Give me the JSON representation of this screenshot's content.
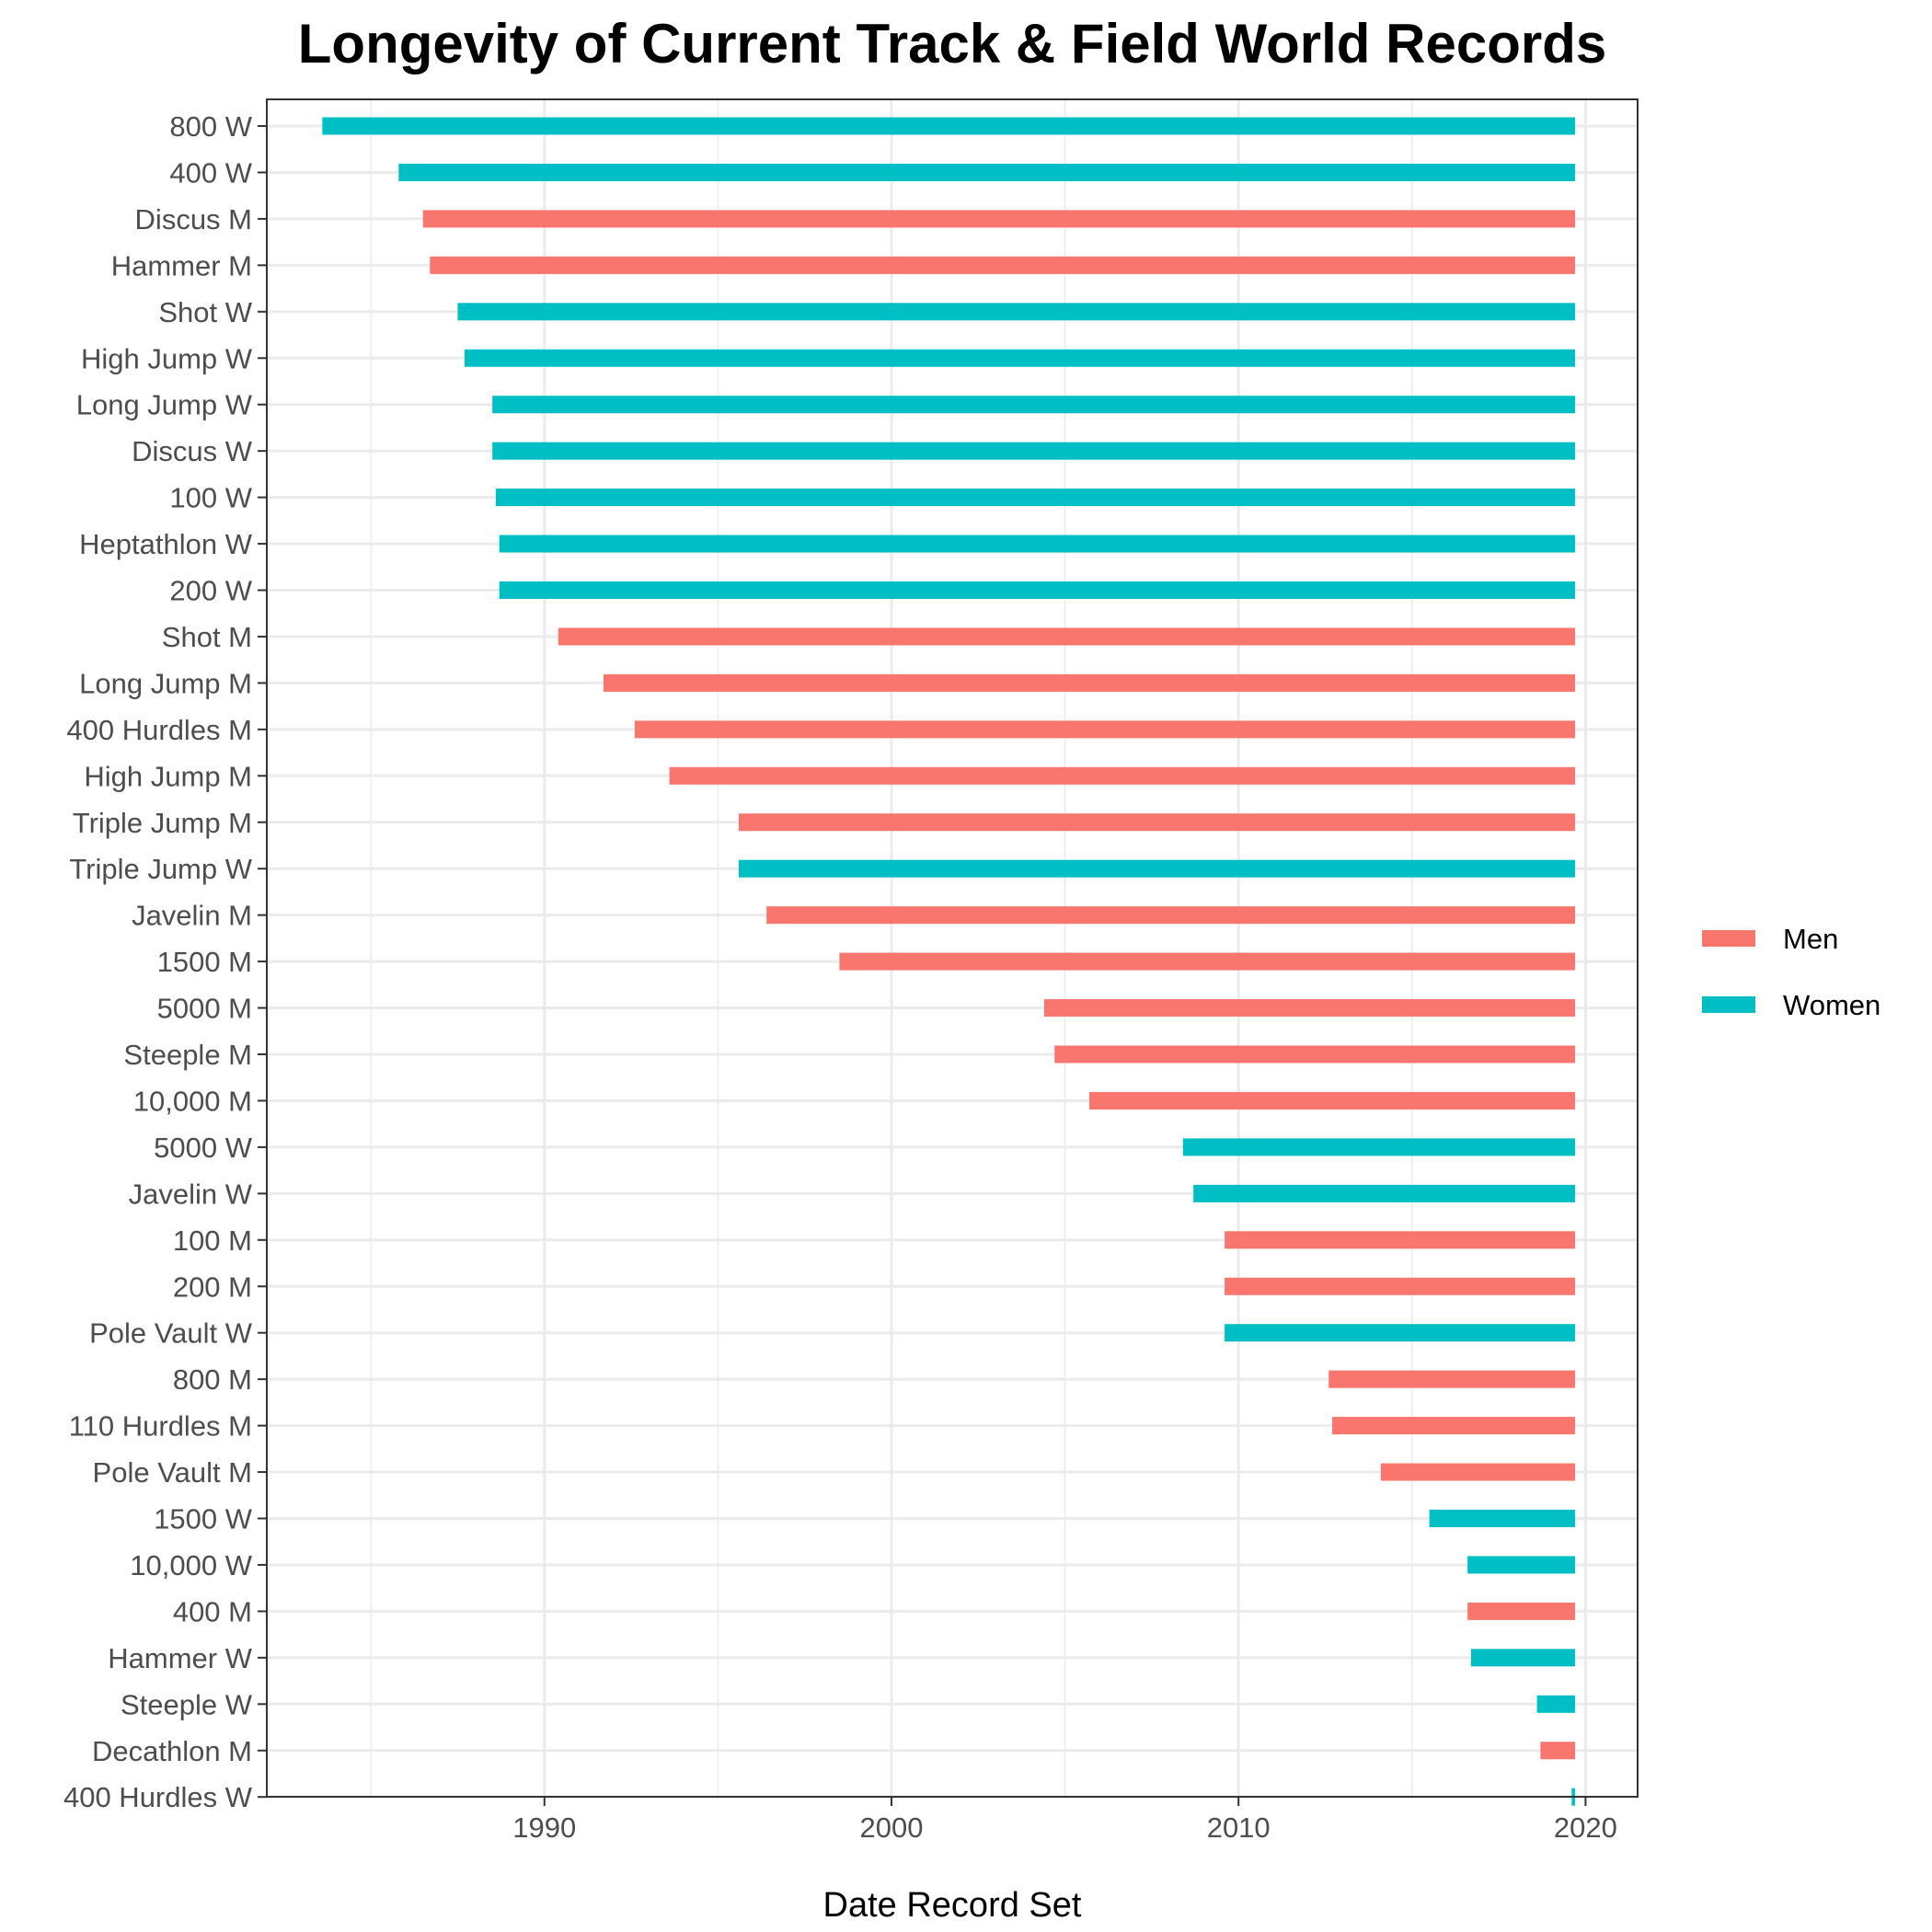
{
  "colors": {
    "men": "#F8766D",
    "women": "#00BFC4"
  },
  "chart_data": {
    "type": "bar",
    "orientation": "horizontal",
    "title": "Longevity of Current Track & Field World Records",
    "xlabel": "Date Record Set",
    "ylabel": "",
    "xlim": [
      1982,
      2021.5
    ],
    "end_value": 2019.7,
    "xticks": [
      1990,
      2000,
      2010,
      2020
    ],
    "grid": true,
    "legend": {
      "position": "right",
      "entries": [
        "Men",
        "Women"
      ]
    },
    "series": [
      {
        "name": "Men",
        "color": "#F8766D"
      },
      {
        "name": "Women",
        "color": "#00BFC4"
      }
    ],
    "records": [
      {
        "event": "800 W",
        "group": "Women",
        "start": 1983.6
      },
      {
        "event": "400 W",
        "group": "Women",
        "start": 1985.8
      },
      {
        "event": "Discus M",
        "group": "Men",
        "start": 1986.5
      },
      {
        "event": "Hammer M",
        "group": "Men",
        "start": 1986.7
      },
      {
        "event": "Shot W",
        "group": "Women",
        "start": 1987.5
      },
      {
        "event": "High Jump W",
        "group": "Women",
        "start": 1987.7
      },
      {
        "event": "Long Jump W",
        "group": "Women",
        "start": 1988.5
      },
      {
        "event": "Discus W",
        "group": "Women",
        "start": 1988.5
      },
      {
        "event": "100 W",
        "group": "Women",
        "start": 1988.6
      },
      {
        "event": "Heptathlon W",
        "group": "Women",
        "start": 1988.7
      },
      {
        "event": "200 W",
        "group": "Women",
        "start": 1988.7
      },
      {
        "event": "Shot M",
        "group": "Men",
        "start": 1990.4
      },
      {
        "event": "Long Jump M",
        "group": "Men",
        "start": 1991.7
      },
      {
        "event": "400 Hurdles M",
        "group": "Men",
        "start": 1992.6
      },
      {
        "event": "High Jump M",
        "group": "Men",
        "start": 1993.6
      },
      {
        "event": "Triple Jump M",
        "group": "Men",
        "start": 1995.6
      },
      {
        "event": "Triple Jump W",
        "group": "Women",
        "start": 1995.6
      },
      {
        "event": "Javelin M",
        "group": "Men",
        "start": 1996.4
      },
      {
        "event": "1500 M",
        "group": "Men",
        "start": 1998.5
      },
      {
        "event": "5000 M",
        "group": "Men",
        "start": 2004.4
      },
      {
        "event": "Steeple M",
        "group": "Men",
        "start": 2004.7
      },
      {
        "event": "10,000 M",
        "group": "Men",
        "start": 2005.7
      },
      {
        "event": "5000 W",
        "group": "Women",
        "start": 2008.4
      },
      {
        "event": "Javelin W",
        "group": "Women",
        "start": 2008.7
      },
      {
        "event": "100 M",
        "group": "Men",
        "start": 2009.6
      },
      {
        "event": "200 M",
        "group": "Men",
        "start": 2009.6
      },
      {
        "event": "Pole Vault W",
        "group": "Women",
        "start": 2009.6
      },
      {
        "event": "800 M",
        "group": "Men",
        "start": 2012.6
      },
      {
        "event": "110 Hurdles M",
        "group": "Men",
        "start": 2012.7
      },
      {
        "event": "Pole Vault M",
        "group": "Men",
        "start": 2014.1
      },
      {
        "event": "1500 W",
        "group": "Women",
        "start": 2015.5
      },
      {
        "event": "10,000 W",
        "group": "Women",
        "start": 2016.6
      },
      {
        "event": "400 M",
        "group": "Men",
        "start": 2016.6
      },
      {
        "event": "Hammer W",
        "group": "Women",
        "start": 2016.7
      },
      {
        "event": "Steeple W",
        "group": "Women",
        "start": 2018.6
      },
      {
        "event": "Decathlon M",
        "group": "Men",
        "start": 2018.7
      },
      {
        "event": "400 Hurdles W",
        "group": "Women",
        "start": 2019.6
      }
    ]
  }
}
